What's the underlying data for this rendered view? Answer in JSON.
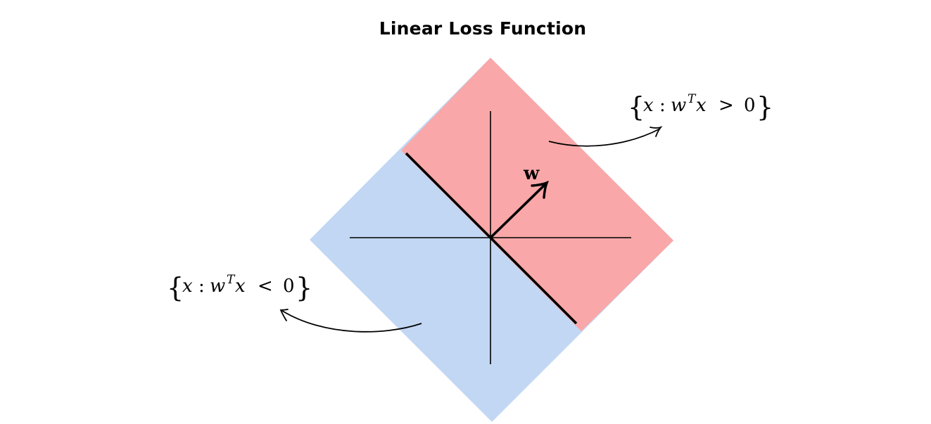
{
  "title": "Linear Loss Function",
  "vector_label": "w",
  "positive_set": {
    "open_brace": "{",
    "var": "x",
    "colon": ":",
    "w": "w",
    "sup": "T",
    "x2": "x",
    "relation": ">",
    "zero": "0",
    "close_brace": "}"
  },
  "negative_set": {
    "open_brace": "{",
    "var": "x",
    "colon": ":",
    "w": "w",
    "sup": "T",
    "x2": "x",
    "relation": "<",
    "zero": "0",
    "close_brace": "}"
  },
  "colors": {
    "positive_region": "#f9a7a8",
    "negative_region": "#c2d7f3",
    "lines": "#000000"
  }
}
